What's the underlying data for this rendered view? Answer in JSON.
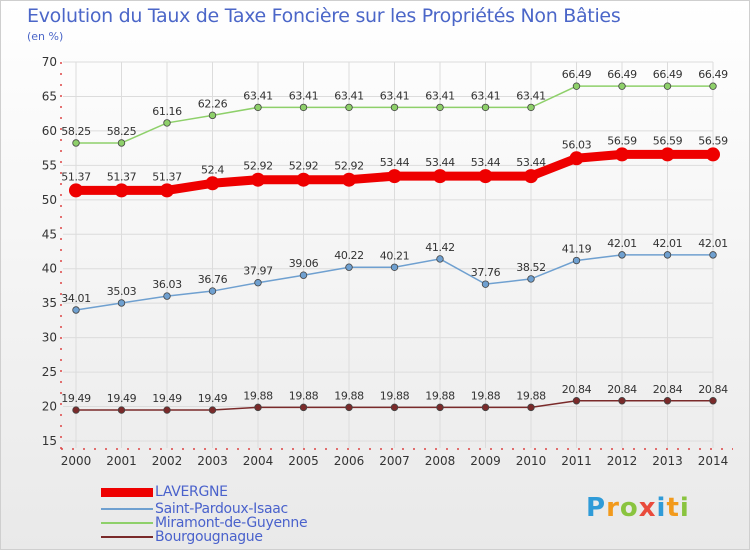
{
  "title": "Evolution du Taux de Taxe Foncière sur les Propriétés Non Bâties",
  "subtitle": "(en %)",
  "logo": {
    "text": "Proxiti",
    "colors": [
      "#2f9bd8",
      "#f29a1c",
      "#8ac43f",
      "#e94b3c",
      "#2f9bd8",
      "#f29a1c",
      "#8ac43f"
    ]
  },
  "chart_data": {
    "type": "line",
    "x": [
      "2000",
      "2001",
      "2002",
      "2003",
      "2004",
      "2005",
      "2006",
      "2007",
      "2008",
      "2009",
      "2010",
      "2011",
      "2012",
      "2013",
      "2014"
    ],
    "ylim": [
      15,
      70
    ],
    "yticks": [
      15,
      20,
      25,
      30,
      35,
      40,
      45,
      50,
      55,
      60,
      65,
      70
    ],
    "grid": true,
    "legend_position": "bottom-left",
    "series": [
      {
        "name": "LAVERGNE",
        "color": "#ee0000",
        "emphasis": true,
        "values": [
          51.37,
          51.37,
          51.37,
          52.4,
          52.92,
          52.92,
          52.92,
          53.44,
          53.44,
          53.44,
          53.44,
          56.03,
          56.59,
          56.59,
          56.59
        ],
        "labels": [
          "51.37",
          "51.37",
          "51.37",
          "52.4",
          "52.92",
          "52.92",
          "52.92",
          "53.44",
          "53.44",
          "53.44",
          "53.44",
          "56.03",
          "56.59",
          "56.59",
          "56.59"
        ]
      },
      {
        "name": "Saint-Pardoux-Isaac",
        "color": "#6fa0d0",
        "values": [
          34.01,
          35.03,
          36.03,
          36.76,
          37.97,
          39.06,
          40.22,
          40.21,
          41.42,
          37.76,
          38.52,
          41.19,
          42.01,
          42.01,
          42.01
        ],
        "labels": [
          "34.01",
          "35.03",
          "36.03",
          "36.76",
          "37.97",
          "39.06",
          "40.22",
          "40.21",
          "41.42",
          "37.76",
          "38.52",
          "41.19",
          "42.01",
          "42.01",
          "42.01"
        ]
      },
      {
        "name": "Miramont-de-Guyenne",
        "color": "#8ed06a",
        "values": [
          58.25,
          58.25,
          61.16,
          62.26,
          63.41,
          63.41,
          63.41,
          63.41,
          63.41,
          63.41,
          63.41,
          66.49,
          66.49,
          66.49,
          66.49
        ],
        "labels": [
          "58.25",
          "58.25",
          "61.16",
          "62.26",
          "63.41",
          "63.41",
          "63.41",
          "63.41",
          "63.41",
          "63.41",
          "63.41",
          "66.49",
          "66.49",
          "66.49",
          "66.49"
        ]
      },
      {
        "name": "Bourgougnague",
        "color": "#7a2a2a",
        "values": [
          19.49,
          19.49,
          19.49,
          19.49,
          19.88,
          19.88,
          19.88,
          19.88,
          19.88,
          19.88,
          19.88,
          20.84,
          20.84,
          20.84,
          20.84
        ],
        "labels": [
          "19.49",
          "19.49",
          "19.49",
          "19.49",
          "19.88",
          "19.88",
          "19.88",
          "19.88",
          "19.88",
          "19.88",
          "19.88",
          "20.84",
          "20.84",
          "20.84",
          "20.84"
        ]
      }
    ]
  }
}
